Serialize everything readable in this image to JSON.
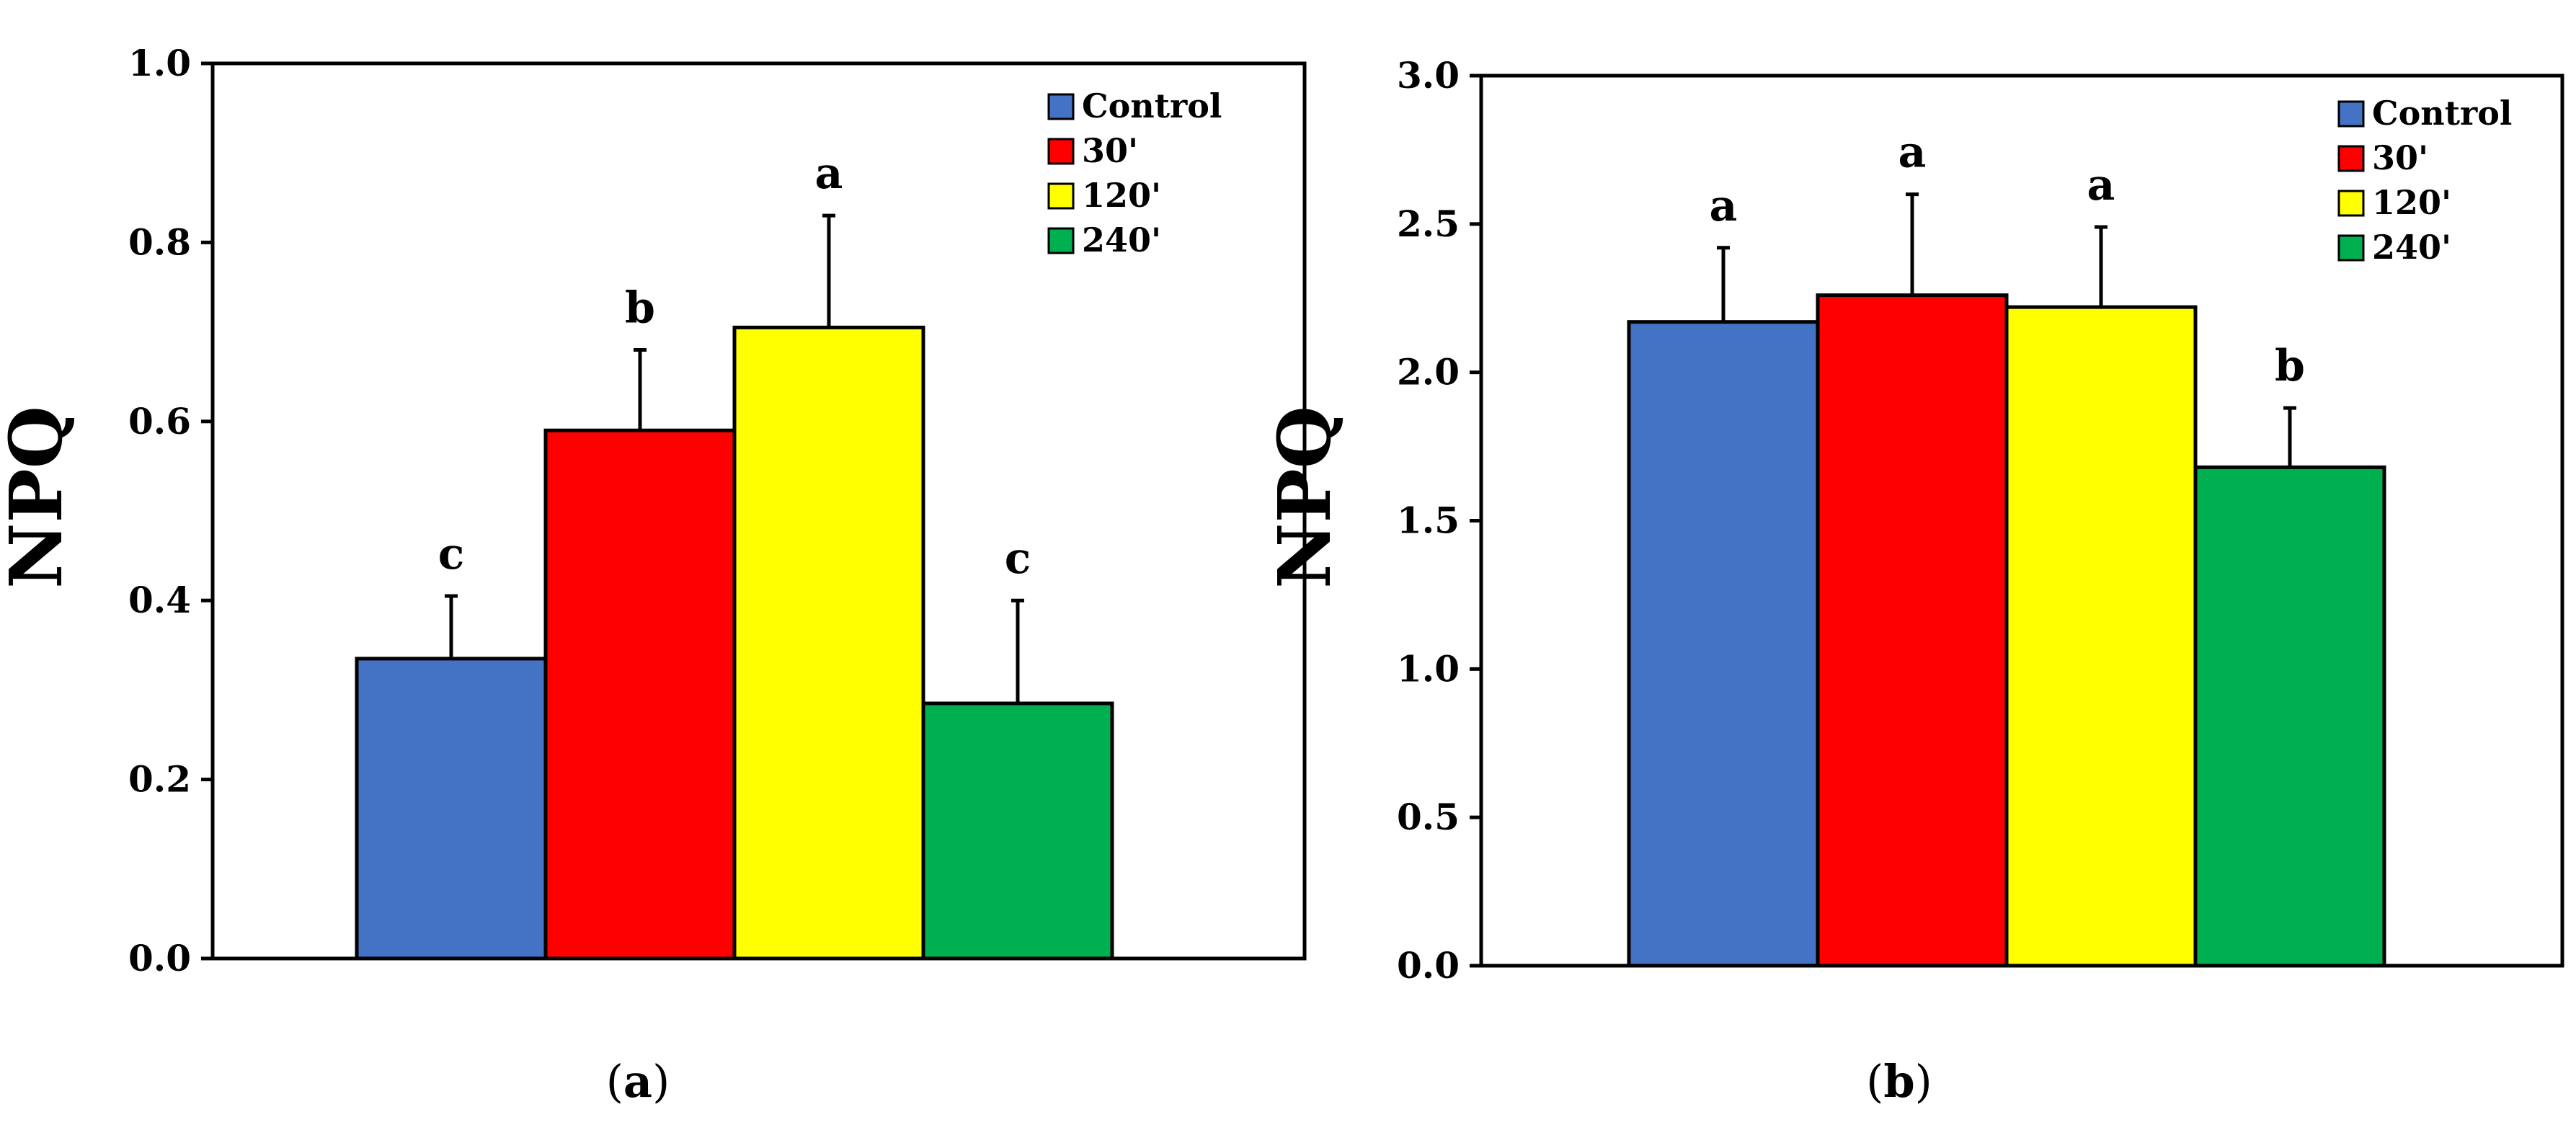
{
  "chart_data": [
    {
      "type": "bar",
      "panel_label": "(a)",
      "panel_letter": "a",
      "ylabel": "NPQ",
      "xlabel": "",
      "ylim": [
        0,
        1.0
      ],
      "yticks": [
        0.0,
        0.2,
        0.4,
        0.6,
        0.8,
        1.0
      ],
      "ytick_labels": [
        "0.0",
        "0.2",
        "0.4",
        "0.6",
        "0.8",
        "1.0"
      ],
      "categories": [
        "Control",
        "30'",
        "120'",
        "240'"
      ],
      "colors": [
        "#4472C4",
        "#FF0000",
        "#FFFF00",
        "#00B050"
      ],
      "values": [
        0.335,
        0.59,
        0.705,
        0.285
      ],
      "errors": [
        0.07,
        0.09,
        0.125,
        0.115
      ],
      "significance": [
        "c",
        "b",
        "a",
        "c"
      ],
      "legend": [
        "Control",
        "30'",
        "120'",
        "240'"
      ],
      "legend_position": "top-right"
    },
    {
      "type": "bar",
      "panel_label": "(b)",
      "panel_letter": "b",
      "ylabel": "NPQ",
      "xlabel": "",
      "ylim": [
        0,
        3.0
      ],
      "yticks": [
        0.0,
        0.5,
        1.0,
        1.5,
        2.0,
        2.5,
        3.0
      ],
      "ytick_labels": [
        "0.0",
        "0.5",
        "1.0",
        "1.5",
        "2.0",
        "2.5",
        "3.0"
      ],
      "categories": [
        "Control",
        "30'",
        "120'",
        "240'"
      ],
      "colors": [
        "#4472C4",
        "#FF0000",
        "#FFFF00",
        "#00B050"
      ],
      "values": [
        2.17,
        2.26,
        2.22,
        1.68
      ],
      "errors": [
        0.25,
        0.34,
        0.27,
        0.2
      ],
      "significance": [
        "a",
        "a",
        "a",
        "b"
      ],
      "legend": [
        "Control",
        "30'",
        "120'",
        "240'"
      ],
      "legend_position": "top-right"
    }
  ]
}
